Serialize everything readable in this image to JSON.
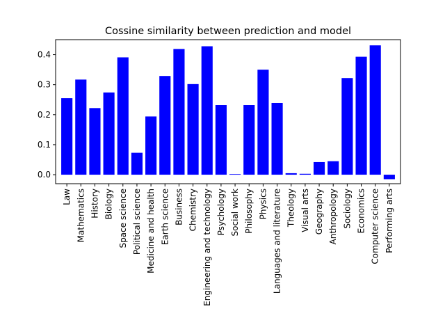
{
  "chart_data": {
    "type": "bar",
    "title": "Cossine similarity between prediction and model",
    "xlabel": "",
    "ylabel": "",
    "bar_color": "#0000ff",
    "ylim": [
      -0.03,
      0.45
    ],
    "yticks": [
      "0.0",
      "0.1",
      "0.2",
      "0.3",
      "0.4"
    ],
    "ytick_values": [
      0.0,
      0.1,
      0.2,
      0.3,
      0.4
    ],
    "grid": false,
    "categories": [
      "Law",
      "Mathematics",
      "History",
      "Biology",
      "Space science",
      "Political science",
      "Medicine and health",
      "Earth science",
      "Business",
      "Chemistry",
      "Engineering and technology",
      "Psychology",
      "Social work",
      "Philosophy",
      "Physics",
      "Languages and literature",
      "Theology",
      "Visual arts",
      "Geography",
      "Anthropology",
      "Sociology",
      "Economics",
      "Computer science",
      "Performing arts"
    ],
    "values": [
      0.255,
      0.317,
      0.222,
      0.274,
      0.391,
      0.073,
      0.194,
      0.329,
      0.419,
      0.302,
      0.428,
      0.232,
      0.002,
      0.232,
      0.35,
      0.239,
      0.005,
      0.003,
      0.042,
      0.045,
      0.322,
      0.393,
      0.431,
      -0.015
    ]
  }
}
